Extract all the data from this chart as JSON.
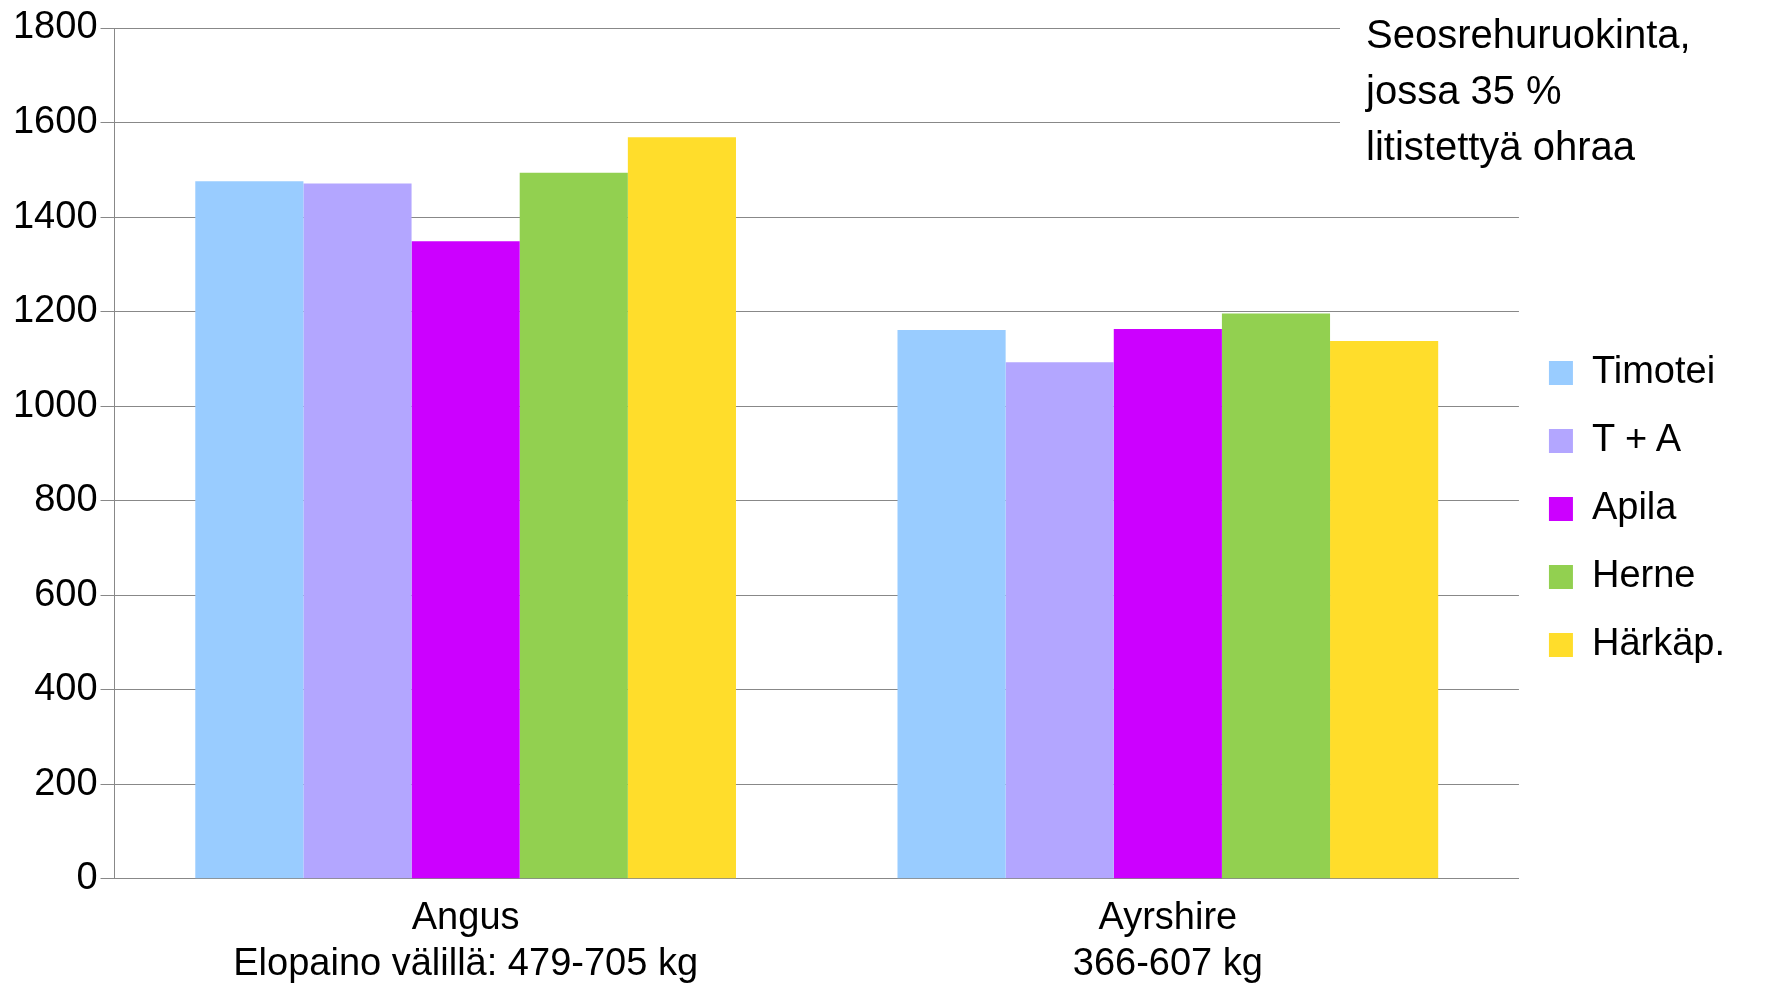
{
  "chart_data": {
    "type": "bar",
    "title": "Seosrehuruokinta, jossa 35 % litistettyä ohraa",
    "categories": [
      "Angus\nElopaino välillä: 479-705 kg",
      "Ayrshire\n366-607 kg"
    ],
    "series": [
      {
        "name": "Timotei",
        "color": "#99ccff",
        "values": [
          1476,
          1161
        ]
      },
      {
        "name": "T + A",
        "color": "#b3a6ff",
        "values": [
          1471,
          1093
        ]
      },
      {
        "name": "Apila",
        "color": "#cc00ff",
        "values": [
          1349,
          1163
        ]
      },
      {
        "name": "Herne",
        "color": "#92d050",
        "values": [
          1494,
          1196
        ]
      },
      {
        "name": "Härkäp.",
        "color": "#ffdd2b",
        "values": [
          1569,
          1138
        ]
      }
    ],
    "ylim": [
      0,
      1800
    ],
    "yticks": [
      0,
      200,
      400,
      600,
      800,
      1000,
      1200,
      1400,
      1600,
      1800
    ],
    "grid": "y",
    "legend": "right"
  }
}
